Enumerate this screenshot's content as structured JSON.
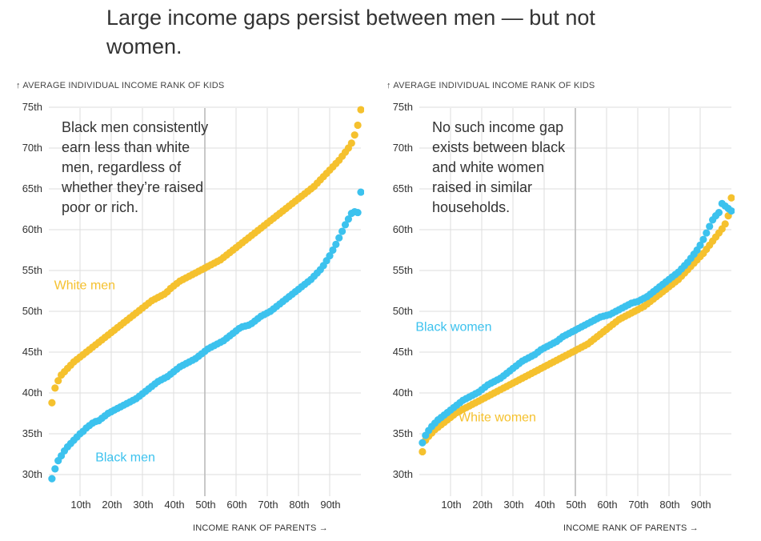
{
  "headline": "Large income gaps persist between men — but not women.",
  "colors": {
    "white_series": "#F5C12E",
    "black_series": "#3CC2EE",
    "grid": "#DDDDDD",
    "axis_mid": "#BBBBBB",
    "text": "#333333"
  },
  "chart_data": [
    {
      "type": "scatter",
      "ylabel": "↑ AVERAGE INDIVIDUAL INCOME RANK OF KIDS",
      "xlabel": "INCOME RANK OF PARENTS →",
      "xlim": [
        0,
        100
      ],
      "ylim": [
        29,
        76
      ],
      "xticks": [
        10,
        20,
        30,
        40,
        50,
        60,
        70,
        80,
        90
      ],
      "xtick_labels": [
        "10th",
        "20th",
        "30th",
        "40th",
        "50th",
        "60th",
        "70th",
        "80th",
        "90th"
      ],
      "yticks": [
        30,
        35,
        40,
        45,
        50,
        55,
        60,
        65,
        70,
        75
      ],
      "ytick_labels": [
        "30th",
        "35th",
        "40th",
        "45th",
        "50th",
        "55th",
        "60th",
        "65th",
        "70th",
        "75th"
      ],
      "grid": true,
      "annotation": [
        "Black men consistently",
        "earn less than white",
        "men, regardless of",
        "whether they’re raised",
        "poor or rich."
      ],
      "series": [
        {
          "name": "White men",
          "color": "#F5C12E",
          "x": [
            1,
            2,
            3,
            4,
            5,
            6,
            7,
            8,
            9,
            10,
            11,
            12,
            13,
            14,
            15,
            16,
            17,
            18,
            19,
            20,
            21,
            22,
            23,
            24,
            25,
            26,
            27,
            28,
            29,
            30,
            31,
            32,
            33,
            34,
            35,
            36,
            37,
            38,
            39,
            40,
            41,
            42,
            43,
            44,
            45,
            46,
            47,
            48,
            49,
            50,
            51,
            52,
            53,
            54,
            55,
            56,
            57,
            58,
            59,
            60,
            61,
            62,
            63,
            64,
            65,
            66,
            67,
            68,
            69,
            70,
            71,
            72,
            73,
            74,
            75,
            76,
            77,
            78,
            79,
            80,
            81,
            82,
            83,
            84,
            85,
            86,
            87,
            88,
            89,
            90,
            91,
            92,
            93,
            94,
            95,
            96,
            97,
            98,
            99,
            100
          ],
          "y": [
            38.8,
            40.6,
            41.5,
            42.2,
            42.6,
            43.0,
            43.4,
            43.8,
            44.1,
            44.4,
            44.7,
            45.0,
            45.3,
            45.6,
            45.9,
            46.2,
            46.5,
            46.8,
            47.1,
            47.4,
            47.7,
            48.0,
            48.3,
            48.6,
            48.9,
            49.2,
            49.5,
            49.8,
            50.1,
            50.4,
            50.7,
            51.0,
            51.3,
            51.5,
            51.7,
            51.9,
            52.1,
            52.4,
            52.8,
            53.1,
            53.4,
            53.7,
            53.9,
            54.1,
            54.3,
            54.5,
            54.7,
            54.9,
            55.1,
            55.3,
            55.5,
            55.7,
            55.9,
            56.1,
            56.3,
            56.6,
            56.9,
            57.2,
            57.5,
            57.8,
            58.1,
            58.4,
            58.7,
            59.0,
            59.3,
            59.6,
            59.9,
            60.2,
            60.5,
            60.8,
            61.1,
            61.4,
            61.7,
            62.0,
            62.3,
            62.6,
            62.9,
            63.2,
            63.5,
            63.8,
            64.1,
            64.4,
            64.7,
            65.0,
            65.3,
            65.7,
            66.1,
            66.5,
            66.9,
            67.3,
            67.7,
            68.1,
            68.5,
            69.0,
            69.5,
            70.0,
            70.6,
            71.6,
            72.8,
            74.7
          ]
        },
        {
          "name": "Black men",
          "color": "#3CC2EE",
          "x": [
            1,
            2,
            3,
            4,
            5,
            6,
            7,
            8,
            9,
            10,
            11,
            12,
            13,
            14,
            15,
            16,
            17,
            18,
            19,
            20,
            21,
            22,
            23,
            24,
            25,
            26,
            27,
            28,
            29,
            30,
            31,
            32,
            33,
            34,
            35,
            36,
            37,
            38,
            39,
            40,
            41,
            42,
            43,
            44,
            45,
            46,
            47,
            48,
            49,
            50,
            51,
            52,
            53,
            54,
            55,
            56,
            57,
            58,
            59,
            60,
            61,
            62,
            63,
            64,
            65,
            66,
            67,
            68,
            69,
            70,
            71,
            72,
            73,
            74,
            75,
            76,
            77,
            78,
            79,
            80,
            81,
            82,
            83,
            84,
            85,
            86,
            87,
            88,
            89,
            90,
            91,
            92,
            93,
            94,
            95,
            96,
            97,
            98,
            99,
            100
          ],
          "y": [
            29.5,
            30.7,
            31.7,
            32.3,
            32.9,
            33.4,
            33.8,
            34.2,
            34.6,
            35.0,
            35.3,
            35.7,
            36.0,
            36.3,
            36.5,
            36.6,
            36.9,
            37.2,
            37.5,
            37.7,
            37.9,
            38.1,
            38.3,
            38.5,
            38.7,
            38.9,
            39.1,
            39.3,
            39.6,
            39.9,
            40.2,
            40.5,
            40.8,
            41.1,
            41.4,
            41.6,
            41.8,
            42.0,
            42.3,
            42.6,
            42.9,
            43.2,
            43.4,
            43.6,
            43.8,
            44.0,
            44.2,
            44.5,
            44.8,
            45.1,
            45.4,
            45.6,
            45.8,
            46.0,
            46.2,
            46.4,
            46.7,
            47.0,
            47.3,
            47.6,
            47.9,
            48.1,
            48.2,
            48.3,
            48.5,
            48.8,
            49.1,
            49.4,
            49.6,
            49.8,
            50.0,
            50.3,
            50.6,
            50.9,
            51.2,
            51.5,
            51.8,
            52.1,
            52.4,
            52.7,
            53.0,
            53.3,
            53.6,
            53.9,
            54.3,
            54.7,
            55.1,
            55.6,
            56.2,
            56.8,
            57.5,
            58.2,
            59.0,
            59.8,
            60.6,
            61.3,
            62.0,
            62.2,
            62.1,
            64.6
          ]
        }
      ],
      "series_labels": [
        {
          "series": "White men",
          "at_x": 11.5,
          "at_y": 52.7
        },
        {
          "series": "Black men",
          "at_x": 24.5,
          "at_y": 31.6
        }
      ]
    },
    {
      "type": "scatter",
      "ylabel": "↑ AVERAGE INDIVIDUAL INCOME RANK OF KIDS",
      "xlabel": "INCOME RANK OF PARENTS →",
      "xlim": [
        0,
        100
      ],
      "ylim": [
        29,
        76
      ],
      "xticks": [
        10,
        20,
        30,
        40,
        50,
        60,
        70,
        80,
        90
      ],
      "xtick_labels": [
        "10th",
        "20th",
        "30th",
        "40th",
        "50th",
        "60th",
        "70th",
        "80th",
        "90th"
      ],
      "yticks": [
        30,
        35,
        40,
        45,
        50,
        55,
        60,
        65,
        70,
        75
      ],
      "ytick_labels": [
        "30th",
        "35th",
        "40th",
        "45th",
        "50th",
        "55th",
        "60th",
        "65th",
        "70th",
        "75th"
      ],
      "grid": true,
      "annotation": [
        "No such income gap",
        "exists between black",
        "and white women",
        "raised in similar",
        "households."
      ],
      "series": [
        {
          "name": "White women",
          "color": "#F5C12E",
          "x": [
            1,
            2,
            3,
            4,
            5,
            6,
            7,
            8,
            9,
            10,
            11,
            12,
            13,
            14,
            15,
            16,
            17,
            18,
            19,
            20,
            21,
            22,
            23,
            24,
            25,
            26,
            27,
            28,
            29,
            30,
            31,
            32,
            33,
            34,
            35,
            36,
            37,
            38,
            39,
            40,
            41,
            42,
            43,
            44,
            45,
            46,
            47,
            48,
            49,
            50,
            51,
            52,
            53,
            54,
            55,
            56,
            57,
            58,
            59,
            60,
            61,
            62,
            63,
            64,
            65,
            66,
            67,
            68,
            69,
            70,
            71,
            72,
            73,
            74,
            75,
            76,
            77,
            78,
            79,
            80,
            81,
            82,
            83,
            84,
            85,
            86,
            87,
            88,
            89,
            90,
            91,
            92,
            93,
            94,
            95,
            96,
            97,
            98,
            99,
            100
          ],
          "y": [
            32.8,
            34.2,
            34.7,
            35.1,
            35.5,
            35.8,
            36.1,
            36.4,
            36.7,
            37.0,
            37.3,
            37.6,
            37.8,
            38.0,
            38.2,
            38.4,
            38.6,
            38.8,
            39.0,
            39.2,
            39.4,
            39.6,
            39.8,
            40.0,
            40.2,
            40.4,
            40.6,
            40.8,
            41.0,
            41.2,
            41.4,
            41.6,
            41.8,
            42.0,
            42.2,
            42.4,
            42.6,
            42.8,
            43.0,
            43.2,
            43.4,
            43.6,
            43.8,
            44.0,
            44.2,
            44.4,
            44.6,
            44.8,
            45.0,
            45.2,
            45.4,
            45.6,
            45.8,
            46.0,
            46.3,
            46.6,
            46.9,
            47.2,
            47.5,
            47.8,
            48.1,
            48.4,
            48.7,
            49.0,
            49.2,
            49.4,
            49.6,
            49.8,
            50.0,
            50.2,
            50.4,
            50.6,
            50.9,
            51.2,
            51.5,
            51.8,
            52.1,
            52.4,
            52.7,
            53.0,
            53.3,
            53.6,
            53.9,
            54.3,
            54.7,
            55.1,
            55.5,
            55.9,
            56.3,
            56.7,
            57.1,
            57.6,
            58.1,
            58.6,
            59.1,
            59.6,
            60.1,
            60.7,
            61.7,
            63.9
          ]
        },
        {
          "name": "Black women",
          "color": "#3CC2EE",
          "x": [
            1,
            2,
            3,
            4,
            5,
            6,
            7,
            8,
            9,
            10,
            11,
            12,
            13,
            14,
            15,
            16,
            17,
            18,
            19,
            20,
            21,
            22,
            23,
            24,
            25,
            26,
            27,
            28,
            29,
            30,
            31,
            32,
            33,
            34,
            35,
            36,
            37,
            38,
            39,
            40,
            41,
            42,
            43,
            44,
            45,
            46,
            47,
            48,
            49,
            50,
            51,
            52,
            53,
            54,
            55,
            56,
            57,
            58,
            59,
            60,
            61,
            62,
            63,
            64,
            65,
            66,
            67,
            68,
            69,
            70,
            71,
            72,
            73,
            74,
            75,
            76,
            77,
            78,
            79,
            80,
            81,
            82,
            83,
            84,
            85,
            86,
            87,
            88,
            89,
            90,
            91,
            92,
            93,
            94,
            95,
            96,
            97,
            98,
            99,
            100
          ],
          "y": [
            33.9,
            34.8,
            35.4,
            35.9,
            36.3,
            36.7,
            37.0,
            37.3,
            37.6,
            37.9,
            38.2,
            38.5,
            38.8,
            39.1,
            39.3,
            39.5,
            39.7,
            39.9,
            40.1,
            40.4,
            40.7,
            41.0,
            41.2,
            41.4,
            41.6,
            41.8,
            42.1,
            42.4,
            42.7,
            43.0,
            43.3,
            43.6,
            43.9,
            44.1,
            44.3,
            44.5,
            44.7,
            45.0,
            45.3,
            45.5,
            45.7,
            45.9,
            46.1,
            46.3,
            46.6,
            46.9,
            47.1,
            47.3,
            47.5,
            47.7,
            47.9,
            48.1,
            48.3,
            48.5,
            48.7,
            48.9,
            49.1,
            49.3,
            49.4,
            49.5,
            49.6,
            49.8,
            50.0,
            50.2,
            50.4,
            50.6,
            50.8,
            51.0,
            51.1,
            51.2,
            51.4,
            51.6,
            51.8,
            52.1,
            52.4,
            52.7,
            53.0,
            53.3,
            53.6,
            53.9,
            54.2,
            54.5,
            54.8,
            55.2,
            55.6,
            56.0,
            56.5,
            57.0,
            57.5,
            58.1,
            58.8,
            59.6,
            60.4,
            61.2,
            61.7,
            62.1,
            63.2,
            62.9,
            62.6,
            62.3
          ]
        }
      ],
      "series_labels": [
        {
          "series": "Black women",
          "at_x": 11.0,
          "at_y": 47.6
        },
        {
          "series": "White women",
          "at_x": 25.0,
          "at_y": 36.5
        }
      ]
    }
  ]
}
